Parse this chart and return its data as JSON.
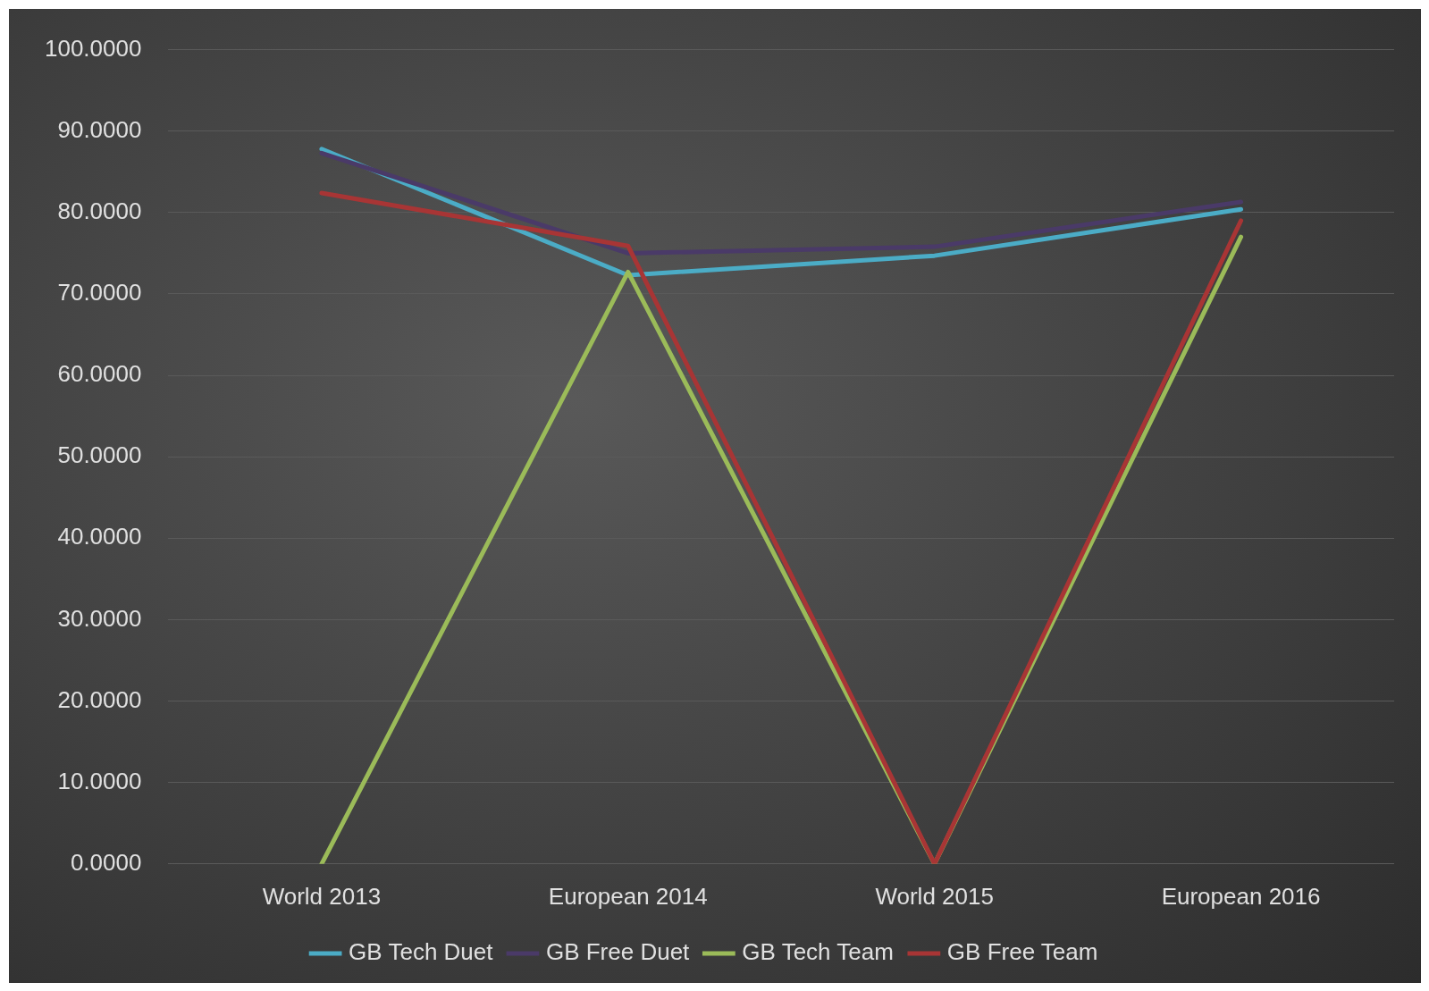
{
  "chart_data": {
    "type": "line",
    "categories": [
      "World 2013",
      "European 2014",
      "World 2015",
      "European 2016"
    ],
    "series": [
      {
        "name": "GB Tech Duet",
        "color": "#4bacc6",
        "values": [
          87.8,
          72.3,
          74.7,
          80.4
        ]
      },
      {
        "name": "GB Free Duet",
        "color": "#4a3a68",
        "values": [
          87.3,
          75.0,
          75.8,
          81.3
        ]
      },
      {
        "name": "GB Tech Team",
        "color": "#9bbb59",
        "values": [
          0,
          72.7,
          0,
          77.0
        ]
      },
      {
        "name": "GB Free Team",
        "color": "#a83535",
        "values": [
          82.4,
          75.9,
          0,
          79.0
        ]
      }
    ],
    "ylim": [
      0,
      100
    ],
    "yticks": [
      {
        "value": 0,
        "label": "0.0000"
      },
      {
        "value": 10,
        "label": "10.0000"
      },
      {
        "value": 20,
        "label": "20.0000"
      },
      {
        "value": 30,
        "label": "30.0000"
      },
      {
        "value": 40,
        "label": "40.0000"
      },
      {
        "value": 50,
        "label": "50.0000"
      },
      {
        "value": 60,
        "label": "60.0000"
      },
      {
        "value": 70,
        "label": "70.0000"
      },
      {
        "value": 80,
        "label": "80.0000"
      },
      {
        "value": 90,
        "label": "90.0000"
      },
      {
        "value": 100,
        "label": "100.0000"
      }
    ],
    "grid": "y",
    "legend": "bottom",
    "marker": "none",
    "line_style": "solid"
  }
}
